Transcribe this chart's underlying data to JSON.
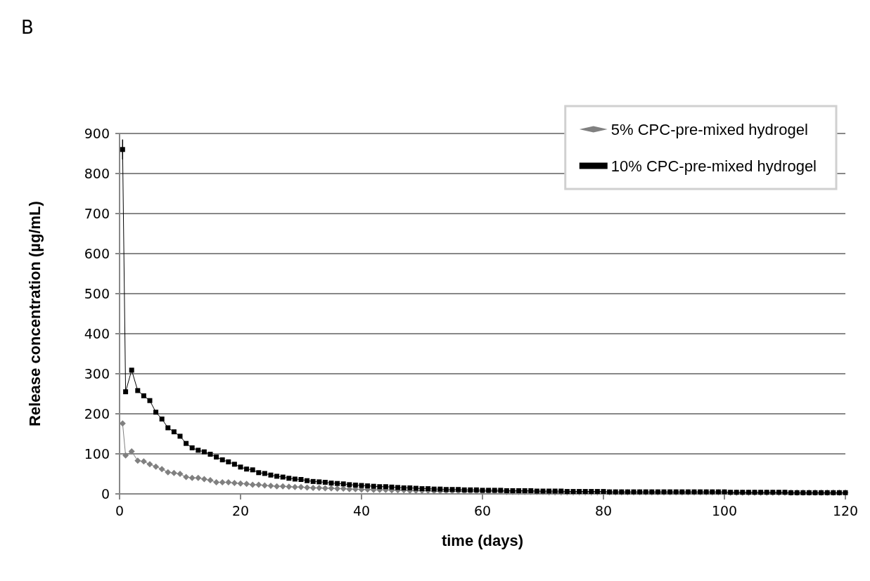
{
  "chart_data": {
    "type": "line",
    "xlabel": "time (days)",
    "ylabel": "Release concentration (µg/mL)",
    "annotations": [
      "B"
    ],
    "x": [
      0.5,
      1,
      2,
      3,
      4,
      5,
      6,
      7,
      8,
      9,
      10,
      11,
      12,
      13,
      14,
      15,
      16,
      17,
      18,
      19,
      20,
      21,
      22,
      23,
      24,
      25,
      26,
      27,
      28,
      29,
      30,
      31,
      32,
      33,
      34,
      35,
      36,
      37,
      38,
      39,
      40,
      41,
      42,
      43,
      44,
      45,
      46,
      47,
      48,
      49,
      50,
      51,
      52,
      53,
      54,
      55,
      56,
      57,
      58,
      59,
      60,
      61,
      62,
      63,
      64,
      65,
      66,
      67,
      68,
      69,
      70,
      71,
      72,
      73,
      74,
      75,
      76,
      77,
      78,
      79,
      80,
      81,
      82,
      83,
      84,
      85,
      86,
      87,
      88,
      89,
      90,
      91,
      92,
      93,
      94,
      95,
      96,
      97,
      98,
      99,
      100,
      101,
      102,
      103,
      104,
      105,
      106,
      107,
      108,
      109,
      110,
      111,
      112,
      113,
      114,
      115,
      116,
      117,
      118,
      119,
      120
    ],
    "series": [
      {
        "name": "5% CPC-pre-mixed hydrogel",
        "color": "#808080",
        "marker": "diamond",
        "values": [
          176,
          96,
          106,
          83,
          81,
          74,
          68,
          62,
          54,
          52,
          50,
          42,
          40,
          40,
          37,
          34,
          29,
          29,
          29,
          27,
          26,
          25,
          23,
          23,
          21,
          20,
          19,
          19,
          18,
          17,
          17,
          16,
          15,
          15,
          14,
          14,
          13,
          13,
          12,
          12,
          11,
          11,
          10,
          10,
          10,
          9,
          9,
          9,
          8,
          8,
          8,
          8,
          7,
          7,
          7,
          7,
          7,
          6,
          6,
          6,
          6,
          6,
          6,
          6,
          5,
          5,
          5,
          5,
          5,
          5,
          5,
          4,
          4,
          4,
          4,
          4,
          4,
          4,
          4,
          4,
          4,
          4,
          4,
          4,
          4,
          4,
          4,
          4,
          4,
          4,
          4,
          4,
          4,
          4,
          4,
          4,
          4,
          4,
          4,
          4,
          4,
          3,
          3,
          3,
          3,
          3,
          3,
          3,
          3,
          3,
          3,
          3,
          3,
          3,
          3,
          3,
          3,
          3,
          3,
          3,
          3
        ]
      },
      {
        "name": "10% CPC-pre-mixed hydrogel",
        "color": "#000000",
        "marker": "square",
        "values": [
          860,
          255,
          309,
          258,
          245,
          233,
          204,
          187,
          165,
          155,
          144,
          126,
          115,
          109,
          105,
          99,
          92,
          85,
          80,
          74,
          67,
          62,
          60,
          53,
          51,
          47,
          44,
          42,
          39,
          37,
          36,
          33,
          31,
          30,
          29,
          27,
          26,
          25,
          23,
          22,
          21,
          20,
          19,
          18,
          18,
          17,
          16,
          15,
          15,
          14,
          13,
          13,
          12,
          12,
          11,
          11,
          11,
          10,
          10,
          10,
          9,
          9,
          9,
          9,
          8,
          8,
          8,
          8,
          8,
          7,
          7,
          7,
          7,
          7,
          6,
          6,
          6,
          6,
          6,
          6,
          6,
          5,
          5,
          5,
          5,
          5,
          5,
          5,
          5,
          5,
          5,
          5,
          5,
          5,
          5,
          5,
          5,
          5,
          5,
          5,
          5,
          4,
          4,
          4,
          4,
          4,
          4,
          4,
          4,
          4,
          4,
          3,
          3,
          3,
          3,
          3,
          3,
          3,
          3,
          3,
          3
        ],
        "errors": [
          25,
          null,
          null,
          null,
          null,
          null,
          null,
          null,
          null,
          null,
          null,
          null,
          null,
          null,
          null,
          null,
          null,
          null,
          null,
          null,
          null,
          null,
          null,
          null,
          null,
          null,
          null,
          null,
          null,
          null,
          null,
          null,
          null,
          null,
          null,
          null,
          null,
          null,
          null,
          null,
          null,
          null,
          null,
          null,
          null,
          null,
          null,
          null,
          null,
          null,
          null,
          null,
          null,
          null,
          null,
          null,
          null,
          null,
          null,
          null,
          null,
          null,
          null,
          null,
          null,
          null,
          null,
          null,
          null,
          null,
          null,
          null,
          null,
          null,
          null,
          null,
          null,
          null,
          null,
          null,
          null,
          null,
          null,
          null,
          null,
          null,
          null,
          null,
          null,
          null,
          null,
          null,
          null,
          null,
          null,
          null,
          null,
          null,
          null,
          null,
          null,
          null,
          null,
          null,
          null,
          null,
          null,
          null,
          null,
          null,
          null,
          null,
          null,
          null,
          null,
          null,
          null,
          null,
          null,
          null,
          null
        ]
      }
    ],
    "xlim": [
      0,
      120
    ],
    "xticks": [
      0,
      20,
      40,
      60,
      80,
      100,
      120
    ],
    "ylim": [
      0,
      900
    ],
    "yticks": [
      0,
      100,
      200,
      300,
      400,
      500,
      600,
      700,
      800,
      900
    ],
    "grid": "y",
    "legend": "top right",
    "line_style": "solid"
  }
}
